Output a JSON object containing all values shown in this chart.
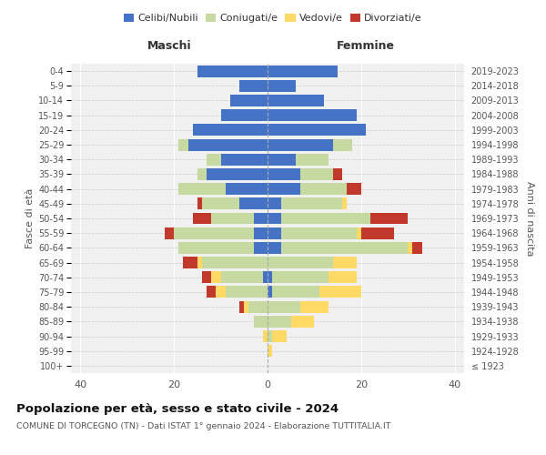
{
  "age_groups": [
    "100+",
    "95-99",
    "90-94",
    "85-89",
    "80-84",
    "75-79",
    "70-74",
    "65-69",
    "60-64",
    "55-59",
    "50-54",
    "45-49",
    "40-44",
    "35-39",
    "30-34",
    "25-29",
    "20-24",
    "15-19",
    "10-14",
    "5-9",
    "0-4"
  ],
  "birth_years": [
    "≤ 1923",
    "1924-1928",
    "1929-1933",
    "1934-1938",
    "1939-1943",
    "1944-1948",
    "1949-1953",
    "1954-1958",
    "1959-1963",
    "1964-1968",
    "1969-1973",
    "1974-1978",
    "1979-1983",
    "1984-1988",
    "1989-1993",
    "1994-1998",
    "1999-2003",
    "2004-2008",
    "2009-2013",
    "2014-2018",
    "2019-2023"
  ],
  "male": {
    "celibi": [
      0,
      0,
      0,
      0,
      0,
      0,
      1,
      0,
      3,
      3,
      3,
      6,
      9,
      13,
      10,
      17,
      16,
      10,
      8,
      6,
      15
    ],
    "coniugati": [
      0,
      0,
      0,
      3,
      4,
      9,
      9,
      14,
      16,
      17,
      9,
      8,
      10,
      2,
      3,
      2,
      0,
      0,
      0,
      0,
      0
    ],
    "vedovi": [
      0,
      0,
      1,
      0,
      1,
      2,
      2,
      1,
      0,
      0,
      0,
      0,
      0,
      0,
      0,
      0,
      0,
      0,
      0,
      0,
      0
    ],
    "divorziati": [
      0,
      0,
      0,
      0,
      1,
      2,
      2,
      3,
      0,
      2,
      4,
      1,
      0,
      0,
      0,
      0,
      0,
      0,
      0,
      0,
      0
    ]
  },
  "female": {
    "nubili": [
      0,
      0,
      0,
      0,
      0,
      1,
      1,
      0,
      3,
      3,
      3,
      3,
      7,
      7,
      6,
      14,
      21,
      19,
      12,
      6,
      15
    ],
    "coniugate": [
      0,
      0,
      1,
      5,
      7,
      10,
      12,
      14,
      27,
      16,
      19,
      13,
      10,
      7,
      7,
      4,
      0,
      0,
      0,
      0,
      0
    ],
    "vedove": [
      0,
      1,
      3,
      5,
      6,
      9,
      6,
      5,
      1,
      1,
      0,
      1,
      0,
      0,
      0,
      0,
      0,
      0,
      0,
      0,
      0
    ],
    "divorziate": [
      0,
      0,
      0,
      0,
      0,
      0,
      0,
      0,
      2,
      7,
      8,
      0,
      3,
      2,
      0,
      0,
      0,
      0,
      0,
      0,
      0
    ]
  },
  "colors": {
    "celibi": "#4472C4",
    "coniugati": "#C5D9A0",
    "vedovi": "#FFD966",
    "divorziati": "#C0392B"
  },
  "legend_labels": [
    "Celibi/Nubili",
    "Coniugati/e",
    "Vedovi/e",
    "Divorziati/e"
  ],
  "title": "Popolazione per età, sesso e stato civile - 2024",
  "subtitle": "COMUNE DI TORCEGNO (TN) - Dati ISTAT 1° gennaio 2024 - Elaborazione TUTTITALIA.IT",
  "xlabel_left": "Maschi",
  "xlabel_right": "Femmine",
  "ylabel_left": "Fasce di età",
  "ylabel_right": "Anni di nascita",
  "xlim": 42,
  "background_color": "#ffffff",
  "plot_bg": "#f0f0f0",
  "grid_color": "#ffffff"
}
